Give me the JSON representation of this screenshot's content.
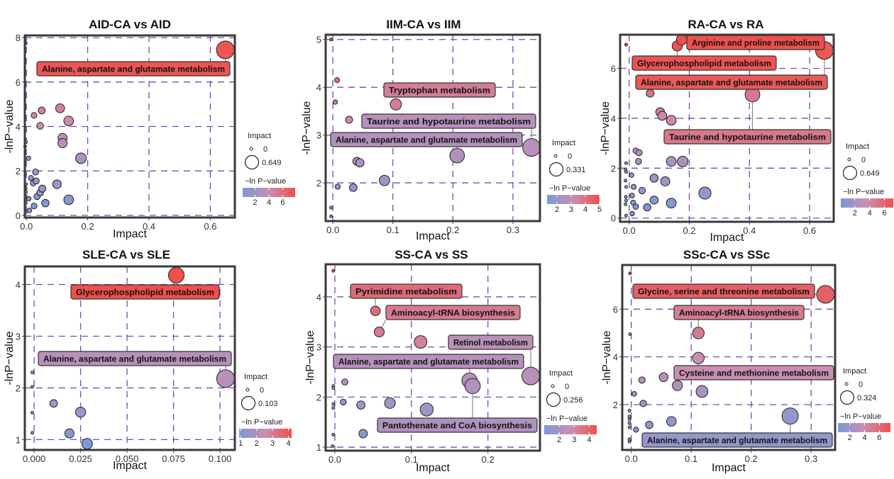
{
  "figure": {
    "size_legend_title": "Impact",
    "color_legend_title": "−ln P−value",
    "color_low": "#7b9ad6",
    "color_mid": "#c98fb2",
    "color_high": "#ef4f4a"
  },
  "chart_data": [
    {
      "type": "scatter",
      "title": "AID-CA vs AID",
      "xlabel": "Impact",
      "ylabel": "-lnP−value",
      "xlim": [
        -0.005,
        0.68
      ],
      "ylim": [
        -0.1,
        8.1
      ],
      "xticks": [
        0.0,
        0.2,
        0.4,
        0.6
      ],
      "xtick_labels": [
        "0.0",
        "0.2",
        "0.4",
        "0.6"
      ],
      "yticks": [
        0,
        2,
        4,
        6,
        8
      ],
      "ytick_labels": [
        "0",
        "2",
        "4",
        "6",
        "8"
      ],
      "grid": true,
      "size_legend": {
        "min": 0,
        "max": 0.649,
        "labels": [
          "0",
          "0.649"
        ]
      },
      "color_legend": {
        "min": 0.2,
        "max": 7.8,
        "ticks": [
          2,
          4,
          6
        ],
        "tick_labels": [
          "2",
          "4",
          "6"
        ]
      },
      "points": [
        {
          "x": 0.649,
          "y": 7.45
        },
        {
          "x": -0.002,
          "y": 7.75
        },
        {
          "x": 0.11,
          "y": 4.82
        },
        {
          "x": 0.05,
          "y": 4.72
        },
        {
          "x": 0.025,
          "y": 4.5
        },
        {
          "x": 0.138,
          "y": 4.25
        },
        {
          "x": 0.045,
          "y": 4.03
        },
        {
          "x": 0.118,
          "y": 3.48
        },
        {
          "x": 0.118,
          "y": 3.25
        },
        {
          "x": 0.178,
          "y": 2.57
        },
        {
          "x": 0.007,
          "y": 2.57
        },
        {
          "x": -0.001,
          "y": 3.3
        },
        {
          "x": -0.004,
          "y": 3.1
        },
        {
          "x": 0.03,
          "y": 1.95
        },
        {
          "x": 0.015,
          "y": 1.68
        },
        {
          "x": 0.032,
          "y": 1.55
        },
        {
          "x": 0.022,
          "y": 1.45
        },
        {
          "x": 0.1,
          "y": 1.4
        },
        {
          "x": 0.052,
          "y": 1.2
        },
        {
          "x": 0.045,
          "y": 1.02
        },
        {
          "x": 0.035,
          "y": 0.85
        },
        {
          "x": 0.008,
          "y": 0.75
        },
        {
          "x": 0.138,
          "y": 0.7
        },
        {
          "x": 0.062,
          "y": 0.55
        },
        {
          "x": 0.025,
          "y": 0.42
        },
        {
          "x": 0.01,
          "y": 0.22
        },
        {
          "x": -0.001,
          "y": 1.4
        },
        {
          "x": -0.002,
          "y": 1.2
        },
        {
          "x": -0.001,
          "y": 1.05
        },
        {
          "x": -0.002,
          "y": 0.85
        },
        {
          "x": -0.001,
          "y": 0.7
        },
        {
          "x": -0.002,
          "y": 0.55
        },
        {
          "x": -0.001,
          "y": 0.15
        }
      ],
      "annotations": [
        {
          "text": "Alanine, aspartate and glutamate metabolism",
          "x": 0.649,
          "y": 7.45,
          "fill_value": 7.45
        }
      ]
    },
    {
      "type": "scatter",
      "title": "IIM-CA vs IIM",
      "xlabel": "Impact",
      "ylabel": "-lnP−value",
      "xlim": [
        -0.012,
        0.345
      ],
      "ylim": [
        1.2,
        5.1
      ],
      "xticks": [
        0.0,
        0.1,
        0.2,
        0.3
      ],
      "xtick_labels": [
        "0.0",
        "0.1",
        "0.2",
        "0.3"
      ],
      "yticks": [
        2,
        3,
        4,
        5
      ],
      "ytick_labels": [
        "2",
        "3",
        "4",
        "5"
      ],
      "grid": true,
      "size_legend": {
        "min": 0,
        "max": 0.331,
        "labels": [
          "0",
          "0.331"
        ]
      },
      "color_legend": {
        "min": 1.3,
        "max": 5.0,
        "ticks": [
          2,
          3,
          4,
          5
        ],
        "tick_labels": [
          "2",
          "3",
          "4",
          "5"
        ]
      },
      "points": [
        {
          "x": -0.003,
          "y": 5.0
        },
        {
          "x": 0.007,
          "y": 4.15
        },
        {
          "x": 0.004,
          "y": 3.69
        },
        {
          "x": 0.105,
          "y": 3.64
        },
        {
          "x": 0.027,
          "y": 3.32
        },
        {
          "x": 0.331,
          "y": 2.74
        },
        {
          "x": 0.207,
          "y": 2.57
        },
        {
          "x": 0.04,
          "y": 2.45
        },
        {
          "x": 0.045,
          "y": 2.42
        },
        {
          "x": 0.086,
          "y": 2.05
        },
        {
          "x": 0.008,
          "y": 1.92
        },
        {
          "x": 0.034,
          "y": 1.9
        },
        {
          "x": -0.003,
          "y": 1.48
        },
        {
          "x": -0.003,
          "y": 1.3
        }
      ],
      "annotations": [
        {
          "text": "Tryptophan metabolism",
          "x": 0.105,
          "y": 3.64,
          "fill_value": 3.64
        },
        {
          "text": "Taurine and hypotaurine metabolism",
          "x": 0.331,
          "y": 2.74,
          "fill_value": 2.74
        },
        {
          "text": "Alanine, aspartate and glutamate metabolism",
          "x": 0.207,
          "y": 2.57,
          "fill_value": 2.57
        }
      ]
    },
    {
      "type": "scatter",
      "title": "RA-CA vs RA",
      "xlabel": "Impact",
      "ylabel": "-lnP−value",
      "xlim": [
        -0.03,
        0.68
      ],
      "ylim": [
        -0.15,
        7.35
      ],
      "xticks": [
        0.0,
        0.2,
        0.4,
        0.6
      ],
      "xtick_labels": [
        "0.0",
        "0.2",
        "0.4",
        "0.6"
      ],
      "yticks": [
        0,
        2,
        4,
        6
      ],
      "ytick_labels": [
        "0",
        "2",
        "4",
        "6"
      ],
      "grid": true,
      "size_legend": {
        "min": 0,
        "max": 0.649,
        "labels": [
          "0",
          "0.649"
        ]
      },
      "color_legend": {
        "min": 0.1,
        "max": 7.2,
        "ticks": [
          2,
          4,
          6
        ],
        "tick_labels": [
          "2",
          "4",
          "6"
        ]
      },
      "points": [
        {
          "x": 0.175,
          "y": 7.15
        },
        {
          "x": 0.16,
          "y": 6.9
        },
        {
          "x": -0.01,
          "y": 6.95
        },
        {
          "x": 0.649,
          "y": 6.72
        },
        {
          "x": 0.07,
          "y": 5.0
        },
        {
          "x": 0.41,
          "y": 4.95
        },
        {
          "x": 0.103,
          "y": 4.25
        },
        {
          "x": 0.11,
          "y": 4.1
        },
        {
          "x": 0.14,
          "y": 3.92
        },
        {
          "x": 0.022,
          "y": 2.7
        },
        {
          "x": 0.033,
          "y": 2.62
        },
        {
          "x": 0.031,
          "y": 2.27
        },
        {
          "x": 0.14,
          "y": 2.27
        },
        {
          "x": 0.178,
          "y": 2.27
        },
        {
          "x": 0.008,
          "y": 1.72
        },
        {
          "x": 0.083,
          "y": 1.6
        },
        {
          "x": 0.12,
          "y": 1.47
        },
        {
          "x": 0.015,
          "y": 1.25
        },
        {
          "x": 0.043,
          "y": 1.1
        },
        {
          "x": 0.252,
          "y": 1.0
        },
        {
          "x": 0.01,
          "y": 0.9
        },
        {
          "x": 0.083,
          "y": 0.72
        },
        {
          "x": 0.013,
          "y": 0.62
        },
        {
          "x": 0.14,
          "y": 0.6
        },
        {
          "x": 0.022,
          "y": 0.46
        },
        {
          "x": 0.06,
          "y": 0.43
        },
        {
          "x": 0.01,
          "y": 0.18
        },
        {
          "x": -0.01,
          "y": 2.2
        },
        {
          "x": -0.012,
          "y": 1.95
        },
        {
          "x": -0.01,
          "y": 1.85
        },
        {
          "x": -0.012,
          "y": 1.5
        },
        {
          "x": -0.01,
          "y": 1.25
        },
        {
          "x": -0.011,
          "y": 0.85
        },
        {
          "x": -0.01,
          "y": 0.7
        },
        {
          "x": -0.012,
          "y": 0.55
        },
        {
          "x": -0.01,
          "y": 0.1
        }
      ],
      "annotations": [
        {
          "text": "Arginine and proline metabolism",
          "x": 0.175,
          "y": 7.15,
          "fill_value": 7.15
        },
        {
          "text": "Glycerophospholipid metabolism",
          "x": 0.16,
          "y": 6.9,
          "fill_value": 6.9
        },
        {
          "text": "Alanine, aspartate and glutamate metabolism",
          "x": 0.649,
          "y": 6.72,
          "fill_value": 6.72
        },
        {
          "text": "Taurine and hypotaurine metabolism",
          "x": 0.41,
          "y": 4.95,
          "fill_value": 4.95
        }
      ]
    },
    {
      "type": "scatter",
      "title": "SLE-CA vs SLE",
      "xlabel": "Impact",
      "ylabel": "-lnP−value",
      "xlim": [
        -0.005,
        0.108
      ],
      "ylim": [
        0.8,
        4.35
      ],
      "xticks": [
        0.0,
        0.025,
        0.05,
        0.075,
        0.1
      ],
      "xtick_labels": [
        "0.000",
        "0.025",
        "0.050",
        "0.075",
        "0.100"
      ],
      "yticks": [
        1,
        2,
        3,
        4
      ],
      "ytick_labels": [
        "1",
        "2",
        "3",
        "4"
      ],
      "grid": true,
      "size_legend": {
        "min": 0,
        "max": 0.103,
        "labels": [
          "0",
          "0.103"
        ]
      },
      "color_legend": {
        "min": 0.9,
        "max": 4.2,
        "ticks": [
          1,
          2,
          3,
          4
        ],
        "tick_labels": [
          "1",
          "2",
          "3",
          "4"
        ]
      },
      "points": [
        {
          "x": 0.0765,
          "y": 4.18
        },
        {
          "x": 0.103,
          "y": 2.18
        },
        {
          "x": 0.0105,
          "y": 1.7
        },
        {
          "x": 0.025,
          "y": 1.53
        },
        {
          "x": 0.019,
          "y": 1.12
        },
        {
          "x": 0.0285,
          "y": 0.92
        },
        {
          "x": -0.001,
          "y": 2.3
        },
        {
          "x": -0.001,
          "y": 2.02
        },
        {
          "x": -0.001,
          "y": 1.52
        },
        {
          "x": -0.001,
          "y": 1.13
        }
      ],
      "annotations": [
        {
          "text": "Glycerophospholipid metabolism",
          "x": 0.0765,
          "y": 4.18,
          "fill_value": 4.18
        },
        {
          "text": "Alanine, aspartate and glutamate metabolism",
          "x": 0.103,
          "y": 2.18,
          "fill_value": 2.18
        }
      ]
    },
    {
      "type": "scatter",
      "title": "SS-CA vs SS",
      "xlabel": "Impact",
      "ylabel": "-lnP−value",
      "xlim": [
        -0.012,
        0.268
      ],
      "ylim": [
        0.93,
        4.65
      ],
      "xticks": [
        0.0,
        0.1,
        0.2
      ],
      "xtick_labels": [
        "0.0",
        "0.1",
        "0.2"
      ],
      "yticks": [
        1,
        2,
        3,
        4
      ],
      "ytick_labels": [
        "1",
        "2",
        "3",
        "4"
      ],
      "grid": true,
      "size_legend": {
        "min": 0,
        "max": 0.256,
        "labels": [
          "0",
          "0.256"
        ]
      },
      "color_legend": {
        "min": 1.0,
        "max": 4.5,
        "ticks": [
          2,
          3,
          4
        ],
        "tick_labels": [
          "2",
          "3",
          "4"
        ]
      },
      "points": [
        {
          "x": -0.002,
          "y": 4.52
        },
        {
          "x": 0.053,
          "y": 3.72
        },
        {
          "x": 0.058,
          "y": 3.3
        },
        {
          "x": 0.112,
          "y": 3.1
        },
        {
          "x": 0.256,
          "y": 2.42
        },
        {
          "x": 0.176,
          "y": 2.33
        },
        {
          "x": 0.18,
          "y": 2.22
        },
        {
          "x": 0.013,
          "y": 2.3
        },
        {
          "x": 0.011,
          "y": 1.9
        },
        {
          "x": 0.034,
          "y": 1.84
        },
        {
          "x": 0.072,
          "y": 1.88
        },
        {
          "x": 0.12,
          "y": 1.75
        },
        {
          "x": 0.037,
          "y": 1.27
        },
        {
          "x": -0.002,
          "y": 2.22
        },
        {
          "x": -0.002,
          "y": 2.18
        },
        {
          "x": -0.002,
          "y": 1.86
        },
        {
          "x": -0.002,
          "y": 1.78
        },
        {
          "x": -0.002,
          "y": 1.25
        },
        {
          "x": -0.003,
          "y": 1.02
        }
      ],
      "annotations": [
        {
          "text": "Pyrimidine metabolism",
          "x": 0.053,
          "y": 3.72,
          "fill_value": 3.72
        },
        {
          "text": "Aminoacyl-tRNA biosynthesis",
          "x": 0.058,
          "y": 3.3,
          "fill_value": 3.3
        },
        {
          "text": "Retinol metabolism",
          "x": 0.256,
          "y": 2.42,
          "fill_value": 2.42
        },
        {
          "text": "Alanine, aspartate and glutamate metabolism",
          "x": 0.176,
          "y": 2.33,
          "fill_value": 2.33
        },
        {
          "text": "Pantothenate and CoA biosynthesis",
          "x": 0.18,
          "y": 2.22,
          "fill_value": 2.22
        }
      ]
    },
    {
      "type": "scatter",
      "title": "SSc-CA vs SSc",
      "xlabel": "Impact",
      "ylabel": "-lnP−value",
      "xlim": [
        -0.015,
        0.34
      ],
      "ylim": [
        0.1,
        7.85
      ],
      "xticks": [
        0.0,
        0.1,
        0.2,
        0.3
      ],
      "xtick_labels": [
        "0.0",
        "0.1",
        "0.2",
        "0.3"
      ],
      "yticks": [
        2,
        4,
        6
      ],
      "ytick_labels": [
        "2",
        "4",
        "6"
      ],
      "grid": true,
      "size_legend": {
        "min": 0,
        "max": 0.324,
        "labels": [
          "0",
          "0.324"
        ]
      },
      "color_legend": {
        "min": 0.4,
        "max": 7.5,
        "ticks": [
          2,
          4,
          6
        ],
        "tick_labels": [
          "2",
          "4",
          "6"
        ]
      },
      "points": [
        {
          "x": -0.002,
          "y": 7.5
        },
        {
          "x": 0.324,
          "y": 6.62
        },
        {
          "x": -0.002,
          "y": 4.95
        },
        {
          "x": 0.112,
          "y": 5.0
        },
        {
          "x": 0.112,
          "y": 3.95
        },
        {
          "x": 0.054,
          "y": 3.15
        },
        {
          "x": 0.018,
          "y": 3.03
        },
        {
          "x": 0.077,
          "y": 2.8
        },
        {
          "x": 0.118,
          "y": 2.55
        },
        {
          "x": 0.005,
          "y": 2.45
        },
        {
          "x": 0.02,
          "y": 2.05
        },
        {
          "x": 0.265,
          "y": 1.52
        },
        {
          "x": 0.067,
          "y": 1.3
        },
        {
          "x": 0.03,
          "y": 1.15
        },
        {
          "x": 0.008,
          "y": 0.95
        },
        {
          "x": -0.003,
          "y": 1.75
        },
        {
          "x": -0.003,
          "y": 1.5
        },
        {
          "x": -0.003,
          "y": 1.38
        },
        {
          "x": -0.003,
          "y": 1.22
        },
        {
          "x": -0.003,
          "y": 1.05
        },
        {
          "x": -0.003,
          "y": 0.55
        },
        {
          "x": -0.003,
          "y": 0.45
        }
      ],
      "annotations": [
        {
          "text": "Glycine, serine and threonine metabolism",
          "x": 0.324,
          "y": 6.62,
          "fill_value": 6.62
        },
        {
          "text": "Aminoacyl-tRNA biosynthesis",
          "x": 0.112,
          "y": 5.0,
          "fill_value": 5.0
        },
        {
          "text": "Cysteine and methionine metabolism",
          "x": 0.112,
          "y": 3.95,
          "fill_value": 3.95
        },
        {
          "text": "Alanine, aspartate and glutamate metabolism",
          "x": 0.265,
          "y": 1.52,
          "fill_value": 1.52
        }
      ]
    }
  ]
}
